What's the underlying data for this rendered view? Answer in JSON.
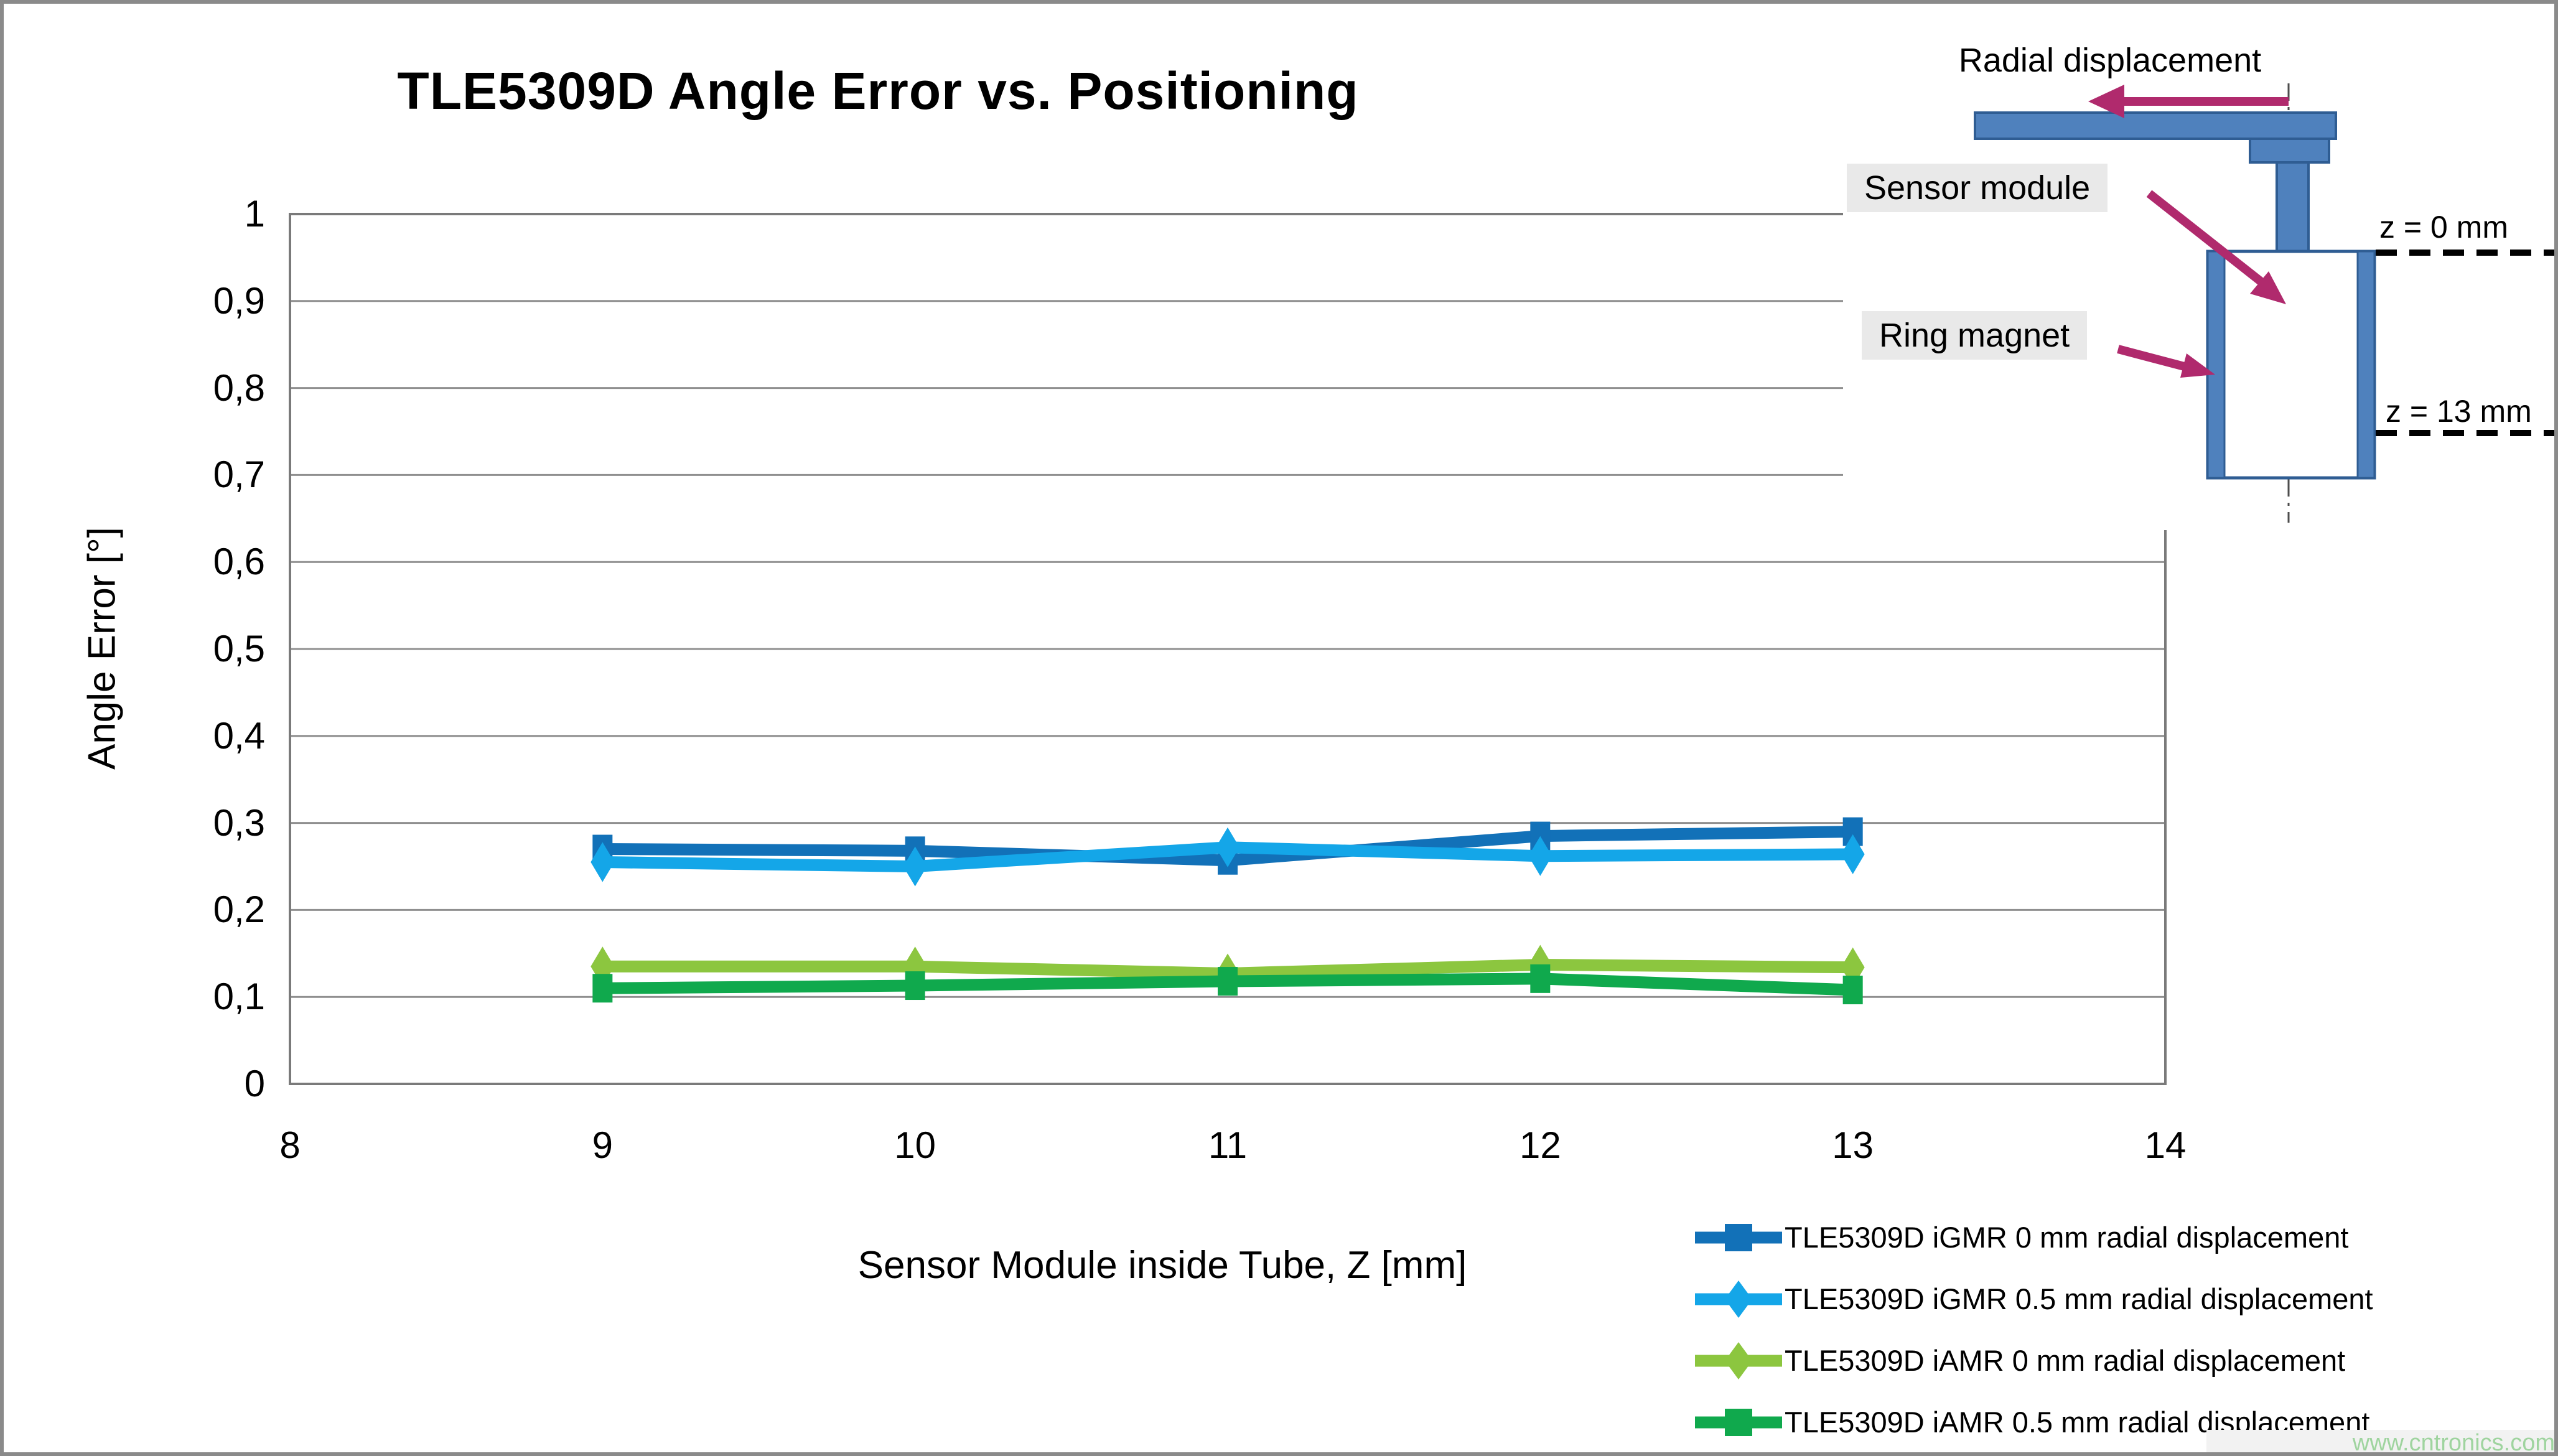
{
  "page": {
    "watermark": "www.cntronics.com"
  },
  "chart_data": {
    "type": "line",
    "title": "TLE5309D Angle Error vs. Positioning",
    "xlabel": "Sensor Module inside Tube, Z [mm]",
    "ylabel": "Angle Error [°]",
    "xlim": [
      8,
      14
    ],
    "ylim": [
      0,
      1
    ],
    "xticks": [
      "8",
      "9",
      "10",
      "11",
      "12",
      "13",
      "14"
    ],
    "ytick_labels": [
      "0",
      "0,1",
      "0,2",
      "0,3",
      "0,4",
      "0,5",
      "0,6",
      "0,7",
      "0,8",
      "0,9",
      "1"
    ],
    "grid": "horizontal",
    "grid_color": "#8f8f8f",
    "border_color": "#7a7a7a",
    "legend_position": "bottom-right",
    "x": [
      9,
      10,
      11,
      12,
      13
    ],
    "series": [
      {
        "name": "TLE5309D iGMR 0 mm radial displacement",
        "color": "#1271b8",
        "marker": "square",
        "values": [
          0.27,
          0.268,
          0.257,
          0.285,
          0.29
        ]
      },
      {
        "name": "TLE5309D iGMR 0.5 mm radial displacement",
        "color": "#14a6e8",
        "marker": "diamond",
        "values": [
          0.255,
          0.25,
          0.272,
          0.262,
          0.264
        ]
      },
      {
        "name": "TLE5309D iAMR 0 mm radial displacement",
        "color": "#8cc63f",
        "marker": "diamond",
        "values": [
          0.135,
          0.135,
          0.127,
          0.137,
          0.134
        ]
      },
      {
        "name": "TLE5309D iAMR 0.5 mm radial displacement",
        "color": "#10a94d",
        "marker": "square",
        "values": [
          0.11,
          0.113,
          0.118,
          0.121,
          0.108
        ]
      }
    ]
  },
  "diagram": {
    "radial_label": "Radial displacement",
    "sensor_label": "Sensor module",
    "magnet_label": "Ring magnet",
    "z0_label": "z = 0 mm",
    "z13_label": "z = 13 mm",
    "shape_fill": "#4f81bd",
    "shape_border": "#2f5d93",
    "arrow_color": "#b02a6d"
  }
}
